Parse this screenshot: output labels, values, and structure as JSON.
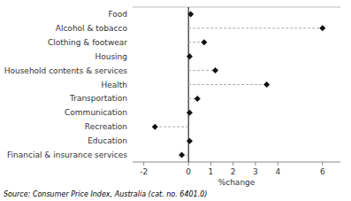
{
  "chart_data": {
    "type": "dot",
    "orientation": "horizontal",
    "categories": [
      "Food",
      "Alcohol & tobacco",
      "Clothing & footwear",
      "Housing",
      "Household contents & services",
      "Health",
      "Transportation",
      "Communication",
      "Recreation",
      "Education",
      "Financial & insurance services"
    ],
    "values": [
      0.1,
      6.0,
      0.7,
      0.05,
      1.2,
      3.5,
      0.4,
      0.05,
      -1.5,
      0.05,
      -0.3
    ],
    "color": "#111111",
    "marker": "diamond",
    "xlabel": "%change",
    "xlim": [
      -2.5,
      6.8
    ],
    "xticks": [
      -2,
      0,
      1,
      2,
      3,
      4,
      6
    ],
    "grid": false,
    "annotations": [
      "Source: Consumer Price Index, Australia (cat.  no. 6401.0)"
    ]
  }
}
